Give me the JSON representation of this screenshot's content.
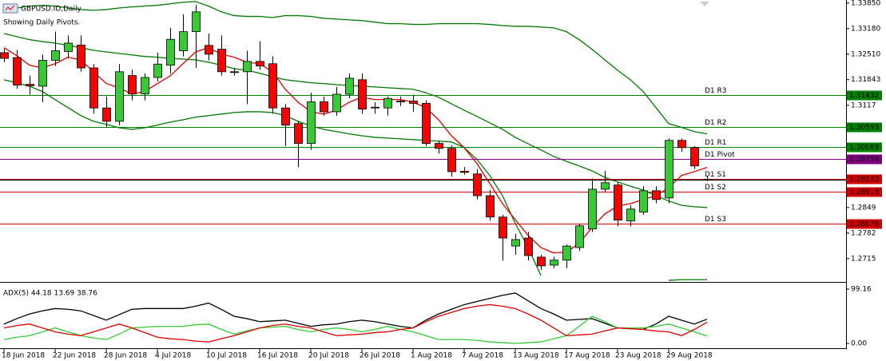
{
  "chart_data": [
    {
      "type": "candlestick",
      "title": "GBPUSD.ID,Daily",
      "subtitle": "Showing Daily Pivots.",
      "categories": [
        "18 Jun 2018",
        null,
        null,
        null,
        "22 Jun 2018",
        null,
        null,
        null,
        "28 Jun 2018",
        null,
        null,
        null,
        "4 Jul 2018",
        null,
        null,
        null,
        "10 Jul 2018",
        null,
        null,
        null,
        "16 Jul 2018",
        null,
        null,
        null,
        "20 Jul 2018",
        null,
        null,
        null,
        "26 Jul 2018",
        null,
        null,
        null,
        "1 Aug 2018",
        null,
        null,
        null,
        "7 Aug 2018",
        null,
        null,
        null,
        "13 Aug 2018",
        null,
        null,
        null,
        "17 Aug 2018",
        null,
        null,
        null,
        "23 Aug 2018",
        null,
        null,
        null,
        "29 Aug 2018",
        null,
        null,
        null
      ],
      "open": [
        1.3255,
        1.3242,
        1.3172,
        1.3167,
        1.3235,
        1.3258,
        1.3275,
        1.3215,
        1.311,
        1.3075,
        1.3195,
        1.3147,
        1.319,
        1.3222,
        1.326,
        1.331,
        1.3274,
        1.3264,
        1.3205,
        1.3205,
        1.3232,
        1.3226,
        1.311,
        1.3069,
        1.3017,
        1.3126,
        1.31,
        1.3146,
        1.3184,
        1.311,
        1.311,
        1.3128,
        1.3128,
        1.3122,
        1.3017,
        1.3004,
        1.2944,
        1.2937,
        1.288,
        1.2824,
        1.2748,
        1.2769,
        1.2719,
        1.2698,
        1.2711,
        1.2744,
        1.2793,
        1.2897,
        1.2908,
        1.2814,
        1.2837,
        1.2893,
        1.2874,
        1.3025,
        1.3006,
        1.2923
      ],
      "high": [
        1.3265,
        1.3262,
        1.3195,
        1.325,
        1.331,
        1.33,
        1.33,
        1.3225,
        1.314,
        1.3225,
        1.321,
        1.32,
        1.3255,
        1.332,
        1.3355,
        1.338,
        1.3305,
        1.33,
        1.3215,
        1.326,
        1.3285,
        1.3245,
        1.312,
        1.3075,
        1.315,
        1.314,
        1.3165,
        1.32,
        1.32,
        1.3125,
        1.314,
        1.314,
        1.3145,
        1.313,
        1.3025,
        1.3012,
        1.2955,
        1.295,
        1.2895,
        1.283,
        1.278,
        1.2785,
        1.2725,
        1.272,
        1.2752,
        1.2805,
        1.2925,
        1.2945,
        1.2915,
        1.2855,
        1.2905,
        1.2905,
        1.303,
        1.303,
        1.301,
        1.293
      ],
      "low": [
        1.323,
        1.316,
        1.3145,
        1.3125,
        1.322,
        1.324,
        1.3205,
        1.3095,
        1.306,
        1.3065,
        1.313,
        1.313,
        1.318,
        1.32,
        1.3245,
        1.3215,
        1.3235,
        1.3195,
        1.3195,
        1.312,
        1.321,
        1.3095,
        1.301,
        1.2955,
        1.3,
        1.309,
        1.309,
        1.3135,
        1.3095,
        1.3095,
        1.309,
        1.3115,
        1.31,
        1.301,
        1.299,
        1.293,
        1.2935,
        1.287,
        1.2815,
        1.271,
        1.2725,
        1.271,
        1.2685,
        1.269,
        1.269,
        1.2735,
        1.2785,
        1.289,
        1.28,
        1.28,
        1.283,
        1.286,
        1.286,
        1.2995,
        1.295,
        1.2918
      ],
      "close": [
        1.324,
        1.317,
        1.3168,
        1.3235,
        1.326,
        1.328,
        1.3215,
        1.311,
        1.3075,
        1.3205,
        1.3147,
        1.319,
        1.3225,
        1.329,
        1.331,
        1.3362,
        1.3251,
        1.3205,
        1.3203,
        1.3232,
        1.322,
        1.311,
        1.3065,
        1.3017,
        1.3126,
        1.31,
        1.3146,
        1.3188,
        1.3107,
        1.3112,
        1.3135,
        1.3126,
        1.3122,
        1.3017,
        1.3004,
        1.2943,
        1.2941,
        1.288,
        1.2824,
        1.2769,
        1.2765,
        1.2723,
        1.2696,
        1.2711,
        1.2748,
        1.2801,
        1.2897,
        1.2914,
        1.2816,
        1.2845,
        1.2893,
        1.287,
        1.3025,
        1.3006,
        1.2958,
        1.2922
      ],
      "up_color": "#33cc33",
      "down_color": "#ff0000",
      "series": [
        {
          "color": "#007a00",
          "values": [
            1.3368,
            1.3372,
            1.3377,
            1.3379,
            1.3377,
            1.3372,
            1.3368,
            1.3366,
            1.3368,
            1.3372,
            1.3375,
            1.3377,
            1.3379,
            1.3383,
            1.3387,
            1.3389,
            1.3377,
            1.3362,
            1.3352,
            1.335,
            1.335,
            1.3347,
            1.3352,
            1.3352,
            1.335,
            1.3345,
            1.3343,
            1.3341,
            1.3339,
            1.3335,
            1.3331,
            1.3331,
            1.3329,
            1.3329,
            1.3331,
            1.3331,
            1.3331,
            1.3331,
            1.3329,
            1.3326,
            1.3324,
            1.3324,
            1.3322,
            1.332,
            1.331,
            1.3289,
            1.3264,
            1.3236,
            1.3209,
            1.3184,
            1.3153,
            1.3111,
            1.3069,
            1.3059,
            1.3048,
            1.3042
          ]
        },
        {
          "color": "#007a00",
          "values": [
            1.3305,
            1.3297,
            1.3289,
            1.3284,
            1.328,
            1.3274,
            1.3268,
            1.3261,
            1.3257,
            1.3253,
            1.3249,
            1.3245,
            1.3243,
            1.324,
            1.3238,
            1.3236,
            1.323,
            1.3222,
            1.3213,
            1.3209,
            1.3201,
            1.3192,
            1.3184,
            1.318,
            1.3176,
            1.3174,
            1.3171,
            1.3169,
            1.3167,
            1.3165,
            1.3163,
            1.3161,
            1.3159,
            1.315,
            1.3138,
            1.3121,
            1.3104,
            1.3088,
            1.3071,
            1.3054,
            1.3033,
            1.3016,
            1.3,
            1.2983,
            1.297,
            1.2958,
            1.2945,
            1.2928,
            1.2916,
            1.2905,
            1.2895,
            1.288,
            1.2866,
            1.2855,
            1.2851,
            1.2849
          ]
        },
        {
          "color": "#007a00",
          "values": [
            1.3184,
            1.3176,
            1.3167,
            1.3153,
            1.3132,
            1.3111,
            1.309,
            1.3075,
            1.3067,
            1.3058,
            1.3054,
            1.3058,
            1.3065,
            1.3073,
            1.3079,
            1.3086,
            1.309,
            1.3094,
            1.3098,
            1.31,
            1.31,
            1.3098,
            1.309,
            1.3075,
            1.3063,
            1.3054,
            1.3048,
            1.3042,
            1.3037,
            1.3033,
            1.3031,
            1.3029,
            1.3027,
            1.3025,
            1.3023,
            1.3021,
            1.3006,
            1.2975,
            1.2933,
            1.288,
            1.2807,
            1.2744,
            1.2671,
            null,
            null,
            null,
            null,
            null,
            null,
            null,
            null,
            null,
            1.2658,
            1.266,
            1.266,
            1.266
          ]
        },
        {
          "color": "#e00000",
          "values": [
            1.3268,
            1.3247,
            1.3222,
            1.3215,
            1.3226,
            1.3243,
            1.3236,
            1.3205,
            1.3174,
            1.3163,
            1.3146,
            1.3153,
            1.3174,
            1.3194,
            1.3226,
            1.3257,
            1.3268,
            1.3251,
            1.3243,
            1.323,
            1.3226,
            1.3205,
            1.3159,
            1.3125,
            1.31,
            1.3094,
            1.3104,
            1.3125,
            1.3138,
            1.3132,
            1.3132,
            1.3132,
            1.3125,
            1.3111,
            1.3079,
            1.3037,
            1.3006,
            1.2964,
            1.2912,
            1.2859,
            1.2817,
            1.2776,
            1.2744,
            1.273,
            1.2732,
            1.2755,
            1.2797,
            1.2832,
            1.2853,
            1.2859,
            1.287,
            1.288,
            1.2901,
            1.2933,
            1.2943,
            1.2954
          ]
        }
      ],
      "levels": [
        {
          "name": "D1 R3",
          "value": 1.31432,
          "color": "#008000"
        },
        {
          "name": "D1 R2",
          "value": 1.30593,
          "color": "#008000"
        },
        {
          "name": "D1 R1",
          "value": 1.30069,
          "color": "#008000"
        },
        {
          "name": "D1 Pivot",
          "value": 1.29754,
          "color": "#800080"
        },
        {
          "name": "D1 S1",
          "value": 1.2923,
          "label": "1.29230",
          "color": "#d00000"
        },
        {
          "name": "D1 S2",
          "value": 1.28915,
          "color": "#d00000"
        },
        {
          "name": "D1 S3",
          "value": 1.28076,
          "color": "#d00000"
        }
      ],
      "ylim": [
        1.2656,
        1.3393
      ],
      "yticks": [
        {
          "value": 1.3385,
          "label": "1.33850"
        },
        {
          "value": 1.3318,
          "label": "1.33180"
        },
        {
          "value": 1.3251,
          "label": "1.32510"
        },
        1.31843,
        1.3117,
        1.2849,
        1.2782,
        1.2715
      ]
    },
    {
      "type": "line",
      "title": "ADX(5) 44.18 13.69 38.76",
      "series": [
        {
          "color": "#000000",
          "values": [
            35.4,
            45.3,
            53.8,
            59.5,
            63.7,
            62.3,
            59.5,
            51.0,
            42.5,
            52.4,
            62.3,
            63.7,
            63.7,
            63.7,
            63.7,
            68.0,
            73.7,
            62.3,
            49.6,
            45.3,
            39.7,
            41.1,
            42.5,
            36.8,
            31.2,
            34.0,
            35.4,
            39.7,
            42.5,
            39.7,
            35.4,
            31.2,
            28.3,
            42.5,
            53.8,
            62.3,
            70.8,
            76.5,
            82.2,
            87.8,
            92.1,
            77.9,
            63.7,
            53.8,
            42.5,
            43.9,
            45.3,
            36.8,
            28.3,
            26.9,
            25.5,
            35.4,
            49.6,
            42.5,
            35.4,
            44.18
          ]
        },
        {
          "color": "#33cc33",
          "values": [
            7.1,
            11.3,
            14.2,
            21.2,
            28.3,
            21.2,
            14.2,
            9.9,
            7.1,
            17.0,
            28.3,
            29.7,
            31.2,
            31.2,
            31.2,
            34.0,
            35.4,
            25.5,
            17.0,
            22.7,
            28.3,
            29.7,
            31.2,
            25.5,
            21.2,
            25.5,
            28.3,
            25.5,
            21.2,
            25.5,
            31.2,
            25.5,
            21.2,
            14.2,
            7.1,
            7.1,
            7.1,
            5.7,
            2.8,
            1.4,
            0,
            1.4,
            2.8,
            8.5,
            14.2,
            31.2,
            49.6,
            39.7,
            28.3,
            28.3,
            28.3,
            31.2,
            35.4,
            28.3,
            21.2,
            13.69
          ]
        },
        {
          "color": "#e00000",
          "values": [
            28.3,
            32.6,
            35.4,
            28.3,
            21.2,
            17.0,
            14.2,
            21.2,
            28.3,
            35.4,
            28.3,
            19.8,
            11.3,
            8.5,
            7.1,
            4.2,
            2.8,
            8.5,
            14.2,
            21.2,
            28.3,
            32.6,
            35.4,
            31.2,
            28.3,
            21.2,
            14.2,
            15.6,
            17.0,
            19.8,
            21.2,
            25.5,
            28.3,
            39.7,
            49.6,
            56.7,
            63.7,
            68.0,
            70.8,
            68.0,
            63.7,
            53.8,
            42.5,
            28.3,
            14.2,
            15.6,
            17.0,
            22.7,
            28.3,
            26.9,
            25.5,
            22.7,
            21.2,
            14.2,
            25.5,
            38.76
          ]
        }
      ],
      "ylim": [
        0,
        99.16
      ],
      "yticks": [
        99.16,
        {
          "value": 0,
          "label": "0.00"
        }
      ]
    }
  ]
}
